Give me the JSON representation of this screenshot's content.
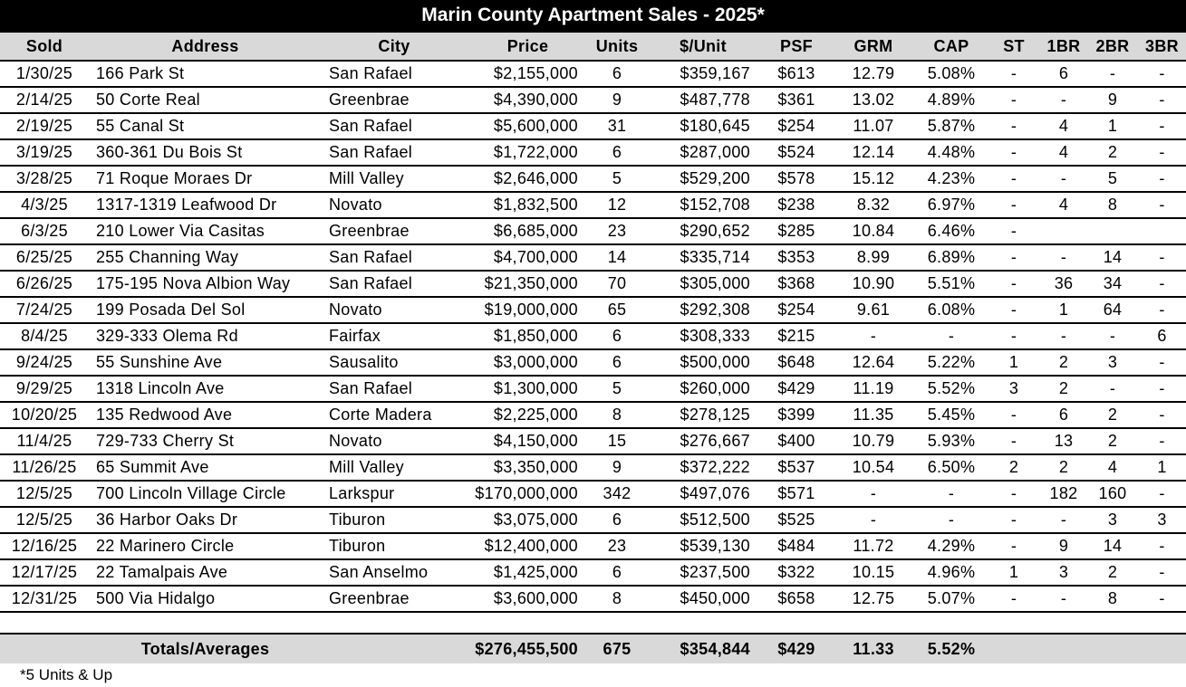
{
  "title": "Marin County Apartment Sales - 2025*",
  "columns": [
    "Sold",
    "Address",
    "City",
    "Price",
    "Units",
    "$/Unit",
    "PSF",
    "GRM",
    "CAP",
    "ST",
    "1BR",
    "2BR",
    "3BR"
  ],
  "rows": [
    [
      "1/30/25",
      "166 Park St",
      "San Rafael",
      "$2,155,000",
      "6",
      "$359,167",
      "$613",
      "12.79",
      "5.08%",
      "-",
      "6",
      "-",
      "-"
    ],
    [
      "2/14/25",
      "50 Corte Real",
      "Greenbrae",
      "$4,390,000",
      "9",
      "$487,778",
      "$361",
      "13.02",
      "4.89%",
      "-",
      "-",
      "9",
      "-"
    ],
    [
      "2/19/25",
      "55 Canal St",
      "San Rafael",
      "$5,600,000",
      "31",
      "$180,645",
      "$254",
      "11.07",
      "5.87%",
      "-",
      "4",
      "1",
      "-"
    ],
    [
      "3/19/25",
      "360-361 Du Bois St",
      "San Rafael",
      "$1,722,000",
      "6",
      "$287,000",
      "$524",
      "12.14",
      "4.48%",
      "-",
      "4",
      "2",
      "-"
    ],
    [
      "3/28/25",
      "71 Roque Moraes Dr",
      "Mill Valley",
      "$2,646,000",
      "5",
      "$529,200",
      "$578",
      "15.12",
      "4.23%",
      "-",
      "-",
      "5",
      "-"
    ],
    [
      "4/3/25",
      "1317-1319 Leafwood Dr",
      "Novato",
      "$1,832,500",
      "12",
      "$152,708",
      "$238",
      "8.32",
      "6.97%",
      "-",
      "4",
      "8",
      "-"
    ],
    [
      "6/3/25",
      "210 Lower Via Casitas",
      "Greenbrae",
      "$6,685,000",
      "23",
      "$290,652",
      "$285",
      "10.84",
      "6.46%",
      "-",
      null,
      null,
      null
    ],
    [
      "6/25/25",
      "255 Channing Way",
      "San Rafael",
      "$4,700,000",
      "14",
      "$335,714",
      "$353",
      "8.99",
      "6.89%",
      "-",
      "-",
      "14",
      "-"
    ],
    [
      "6/26/25",
      "175-195 Nova Albion Way",
      "San Rafael",
      "$21,350,000",
      "70",
      "$305,000",
      "$368",
      "10.90",
      "5.51%",
      "-",
      "36",
      "34",
      "-"
    ],
    [
      "7/24/25",
      "199 Posada Del Sol",
      "Novato",
      "$19,000,000",
      "65",
      "$292,308",
      "$254",
      "9.61",
      "6.08%",
      "-",
      "1",
      "64",
      "-"
    ],
    [
      "8/4/25",
      "329-333 Olema Rd",
      "Fairfax",
      "$1,850,000",
      "6",
      "$308,333",
      "$215",
      "-",
      "-",
      "-",
      "-",
      "-",
      "6"
    ],
    [
      "9/24/25",
      "55 Sunshine Ave",
      "Sausalito",
      "$3,000,000",
      "6",
      "$500,000",
      "$648",
      "12.64",
      "5.22%",
      "1",
      "2",
      "3",
      "-"
    ],
    [
      "9/29/25",
      "1318 Lincoln Ave",
      "San Rafael",
      "$1,300,000",
      "5",
      "$260,000",
      "$429",
      "11.19",
      "5.52%",
      "3",
      "2",
      "-",
      "-"
    ],
    [
      "10/20/25",
      "135 Redwood Ave",
      "Corte Madera",
      "$2,225,000",
      "8",
      "$278,125",
      "$399",
      "11.35",
      "5.45%",
      "-",
      "6",
      "2",
      "-"
    ],
    [
      "11/4/25",
      "729-733 Cherry St",
      "Novato",
      "$4,150,000",
      "15",
      "$276,667",
      "$400",
      "10.79",
      "5.93%",
      "-",
      "13",
      "2",
      "-"
    ],
    [
      "11/26/25",
      "65 Summit Ave",
      "Mill Valley",
      "$3,350,000",
      "9",
      "$372,222",
      "$537",
      "10.54",
      "6.50%",
      "2",
      "2",
      "4",
      "1"
    ],
    [
      "12/5/25",
      "700 Lincoln Village Circle",
      "Larkspur",
      "$170,000,000",
      "342",
      "$497,076",
      "$571",
      "-",
      "-",
      "-",
      "182",
      "160",
      "-"
    ],
    [
      "12/5/25",
      "36 Harbor Oaks Dr",
      "Tiburon",
      "$3,075,000",
      "6",
      "$512,500",
      "$525",
      "-",
      "-",
      "-",
      "-",
      "3",
      "3"
    ],
    [
      "12/16/25",
      "22 Marinero Circle",
      "Tiburon",
      "$12,400,000",
      "23",
      "$539,130",
      "$484",
      "11.72",
      "4.29%",
      "-",
      "9",
      "14",
      "-"
    ],
    [
      "12/17/25",
      "22 Tamalpais Ave",
      "San Anselmo",
      "$1,425,000",
      "6",
      "$237,500",
      "$322",
      "10.15",
      "4.96%",
      "1",
      "3",
      "2",
      "-"
    ],
    [
      "12/31/25",
      "500 Via Hidalgo",
      "Greenbrae",
      "$3,600,000",
      "8",
      "$450,000",
      "$658",
      "12.75",
      "5.07%",
      "-",
      "-",
      "8",
      "-"
    ]
  ],
  "totals": {
    "label": "Totals/Averages",
    "price": "$276,455,500",
    "units": "675",
    "per_unit": "$354,844",
    "psf": "$429",
    "grm": "11.33",
    "cap": "5.52%"
  },
  "footnote": "*5 Units & Up"
}
